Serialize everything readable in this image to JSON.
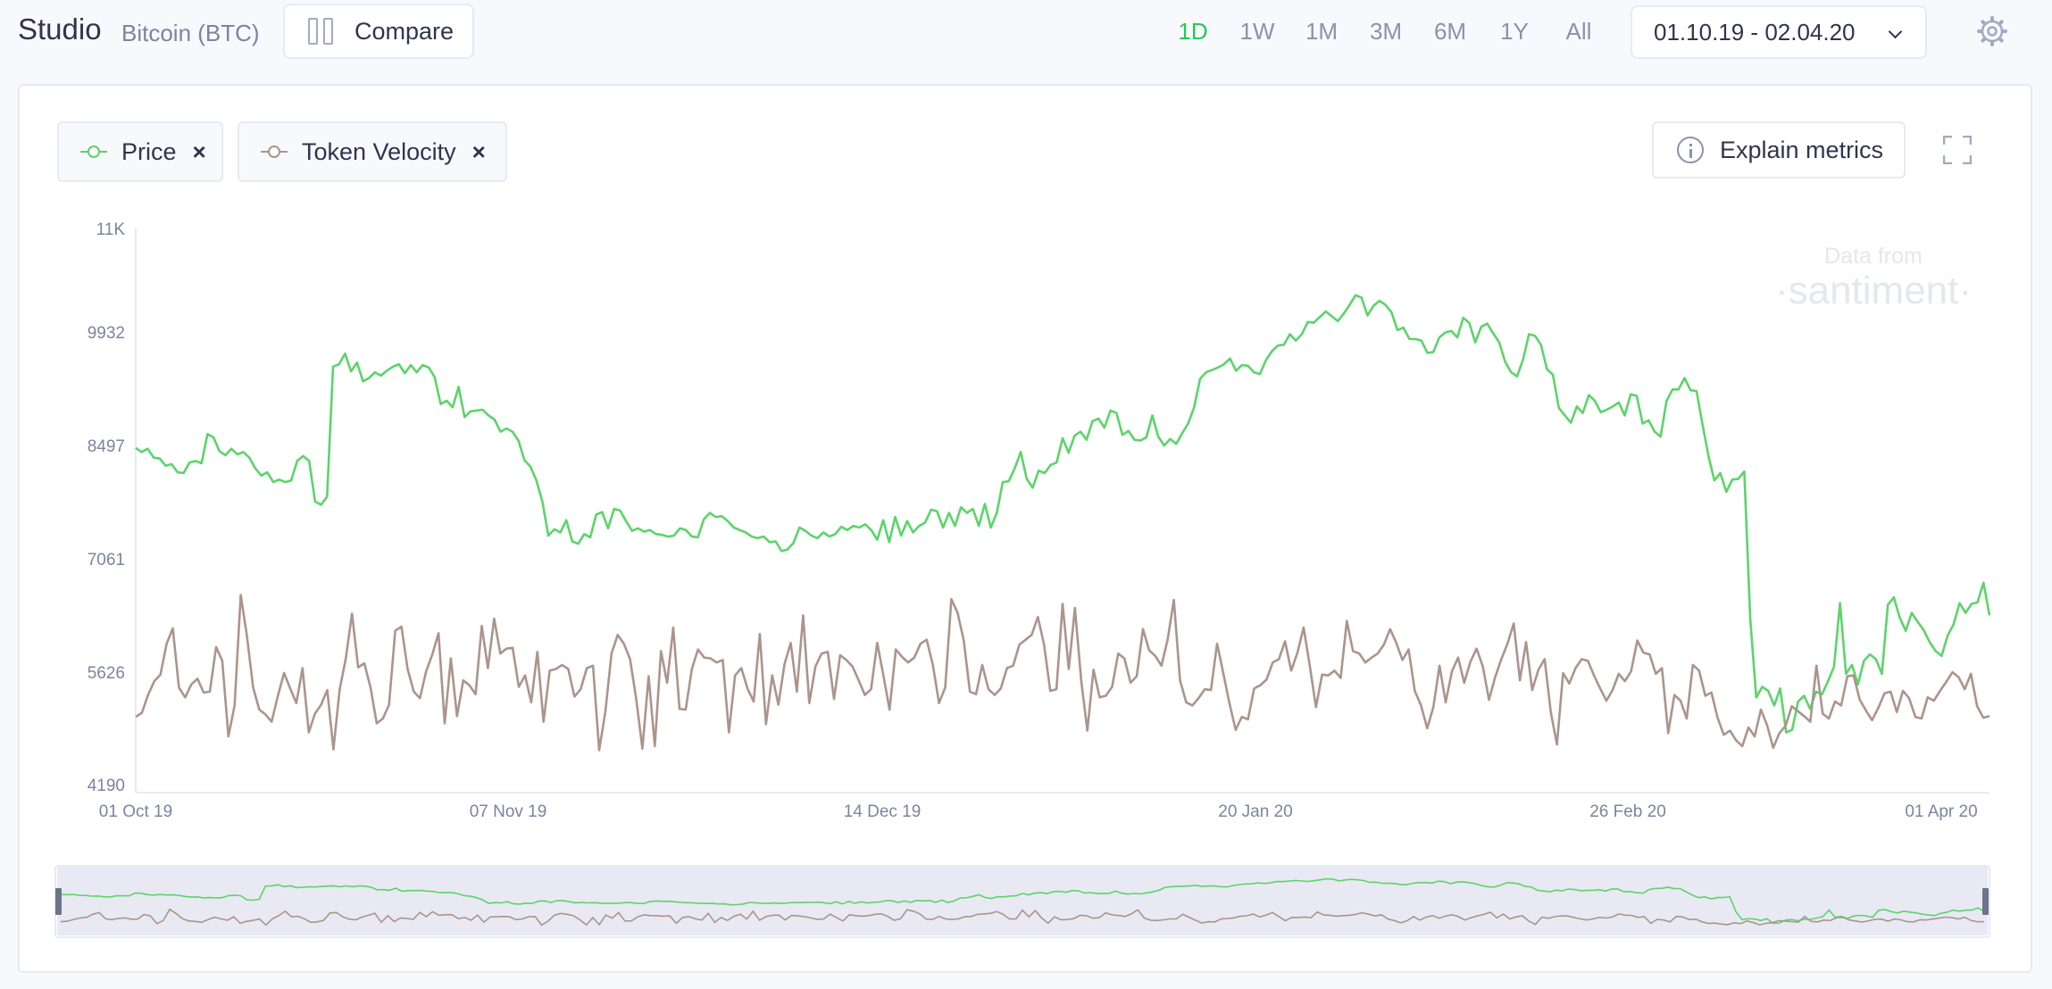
{
  "header": {
    "title": "Studio",
    "project": "Bitcoin (BTC)",
    "compare_label": "Compare",
    "ranges": [
      "1D",
      "1W",
      "1M",
      "3M",
      "6M",
      "1Y",
      "All"
    ],
    "active_range": "1D",
    "date_range": "01.10.19 - 02.04.20"
  },
  "metrics": [
    {
      "name": "Price",
      "color": "#5cd46a",
      "remove": "×"
    },
    {
      "name": "Token Velocity",
      "color": "#ac948c",
      "remove": "×"
    }
  ],
  "explain_label": "Explain metrics",
  "watermark": {
    "line1": "Data from",
    "line2": "·santiment·"
  },
  "chart_data": {
    "type": "line",
    "y_ticks": [
      "11K",
      "9932",
      "8497",
      "7061",
      "5626",
      "4190"
    ],
    "ylim": [
      4190,
      11000
    ],
    "x_ticks": [
      "01 Oct 19",
      "07 Nov 19",
      "14 Dec 19",
      "20 Jan 20",
      "26 Feb 20",
      "01 Apr 20"
    ],
    "x_range": [
      "2019-10-01",
      "2020-04-02"
    ],
    "series": [
      {
        "name": "Price",
        "color": "#5cd46a",
        "values": [
          8300,
          8250,
          8290,
          8180,
          8170,
          8080,
          8100,
          8000,
          7990,
          8120,
          8140,
          8110,
          8470,
          8430,
          8260,
          8210,
          8290,
          8220,
          8250,
          8180,
          8050,
          7960,
          8000,
          7880,
          7910,
          7880,
          7900,
          8140,
          8200,
          8140,
          7640,
          7600,
          7700,
          9300,
          9330,
          9460,
          9240,
          9350,
          9120,
          9160,
          9230,
          9190,
          9250,
          9300,
          9330,
          9220,
          9320,
          9230,
          9320,
          9290,
          9170,
          8840,
          8880,
          8800,
          9050,
          8680,
          8750,
          8760,
          8770,
          8700,
          8650,
          8500,
          8540,
          8500,
          8390,
          8150,
          8070,
          7900,
          7640,
          7220,
          7300,
          7260,
          7410,
          7150,
          7120,
          7240,
          7200,
          7480,
          7510,
          7310,
          7550,
          7530,
          7400,
          7280,
          7310,
          7270,
          7290,
          7240,
          7230,
          7210,
          7220,
          7310,
          7290,
          7210,
          7200,
          7420,
          7500,
          7450,
          7460,
          7400,
          7320,
          7290,
          7260,
          7210,
          7190,
          7210,
          7140,
          7150,
          7030,
          7050,
          7130,
          7320,
          7280,
          7220,
          7190,
          7260,
          7210,
          7240,
          7330,
          7290,
          7340,
          7320,
          7360,
          7290,
          7170,
          7410,
          7140,
          7450,
          7220,
          7400,
          7260,
          7340,
          7380,
          7540,
          7520,
          7320,
          7500,
          7340,
          7570,
          7500,
          7550,
          7340,
          7610,
          7320,
          7500,
          7880,
          7890,
          8050,
          8250,
          7920,
          7810,
          8020,
          7990,
          8090,
          8120,
          8420,
          8240,
          8450,
          8500,
          8400,
          8630,
          8660,
          8550,
          8760,
          8730,
          8460,
          8510,
          8400,
          8390,
          8430,
          8700,
          8440,
          8330,
          8410,
          8350,
          8480,
          8600,
          8800,
          9150,
          9230,
          9260,
          9290,
          9330,
          9400,
          9250,
          9320,
          9310,
          9230,
          9210,
          9380,
          9490,
          9560,
          9570,
          9700,
          9620,
          9700,
          9850,
          9840,
          9910,
          9980,
          9920,
          9860,
          9950,
          10060,
          10180,
          10150,
          9930,
          10050,
          10110,
          10060,
          9970,
          9750,
          9780,
          9640,
          9640,
          9620,
          9470,
          9480,
          9660,
          9720,
          9740,
          9660,
          9900,
          9840,
          9600,
          9790,
          9830,
          9710,
          9600,
          9360,
          9230,
          9180,
          9390,
          9700,
          9680,
          9570,
          9270,
          9200,
          8790,
          8700,
          8610,
          8810,
          8730,
          8950,
          8880,
          8740,
          8770,
          8810,
          8860,
          8700,
          8960,
          8940,
          8600,
          8640,
          8500,
          8440,
          8880,
          9020,
          9020,
          9160,
          9010,
          9000,
          8590,
          8200,
          7900,
          7990,
          7760,
          7910,
          7920,
          8010,
          6190,
          5230,
          5360,
          5310,
          5130,
          5340,
          4800,
          4830,
          5180,
          5250,
          5090,
          5300,
          5270,
          5430,
          5610,
          6390,
          5520,
          5630,
          5390,
          5680,
          5760,
          5700,
          5520,
          6370,
          6460,
          6210,
          6050,
          6270,
          6160,
          6060,
          5910,
          5800,
          5740,
          5990,
          6130,
          6390,
          6270,
          6380,
          6400,
          6640,
          6240
        ]
      },
      {
        "name": "Token Velocity",
        "color": "#ac948c",
        "values": [
          4990,
          5040,
          5260,
          5430,
          5510,
          5890,
          6080,
          5350,
          5230,
          5390,
          5460,
          5290,
          5300,
          5850,
          5680,
          4750,
          5130,
          6490,
          5980,
          5350,
          5080,
          5020,
          4930,
          5250,
          5530,
          5340,
          5160,
          5590,
          4800,
          5030,
          5140,
          5320,
          4590,
          5330,
          5710,
          6260,
          5600,
          5650,
          5350,
          4910,
          4970,
          5140,
          6050,
          6100,
          5580,
          5300,
          5220,
          5550,
          5760,
          6020,
          4910,
          5710,
          5000,
          5440,
          5380,
          5270,
          6110,
          5590,
          6200,
          5770,
          5830,
          5840,
          5360,
          5500,
          5170,
          5790,
          4930,
          5560,
          5580,
          5630,
          5580,
          5240,
          5330,
          5590,
          5620,
          4580,
          5050,
          5770,
          6000,
          5890,
          5700,
          5210,
          4600,
          5490,
          4630,
          5800,
          5410,
          6090,
          5090,
          5080,
          5580,
          5820,
          5720,
          5710,
          5660,
          5690,
          4800,
          5500,
          5590,
          5340,
          5180,
          6010,
          4900,
          5500,
          5140,
          5640,
          5900,
          5300,
          6240,
          5160,
          5610,
          5770,
          5790,
          5210,
          5750,
          5690,
          5610,
          5440,
          5260,
          5330,
          5900,
          5500,
          5080,
          5820,
          5730,
          5660,
          5720,
          5890,
          5940,
          5630,
          5160,
          5350,
          6440,
          6270,
          5930,
          5300,
          5270,
          5630,
          5330,
          5260,
          5340,
          5590,
          5620,
          5880,
          5940,
          6000,
          6220,
          5880,
          5310,
          5330,
          6380,
          5580,
          6330,
          5440,
          4820,
          5570,
          5230,
          5250,
          5360,
          5770,
          5710,
          5410,
          5490,
          6070,
          5810,
          5740,
          5620,
          5940,
          6430,
          5440,
          5170,
          5130,
          5220,
          5330,
          5320,
          5890,
          5530,
          5160,
          4830,
          4990,
          4960,
          5340,
          5380,
          5450,
          5660,
          5700,
          5920,
          5560,
          5780,
          6090,
          5620,
          5110,
          5510,
          5500,
          5560,
          5470,
          6170,
          5800,
          5770,
          5660,
          5720,
          5770,
          5880,
          6070,
          5900,
          5690,
          5820,
          5310,
          5130,
          4850,
          5110,
          5620,
          5170,
          5550,
          5720,
          5410,
          5670,
          5830,
          5610,
          5200,
          5480,
          5700,
          5890,
          6140,
          5440,
          5910,
          5320,
          5570,
          5700,
          5050,
          4650,
          5530,
          5400,
          5590,
          5700,
          5680,
          5500,
          5340,
          5190,
          5320,
          5520,
          5430,
          5550,
          5930,
          5780,
          5760,
          5520,
          5590,
          4790,
          5260,
          5190,
          4970,
          5630,
          5560,
          5250,
          5290,
          4980,
          4770,
          4820,
          4700,
          4630,
          4860,
          4750,
          5080,
          4890,
          4610,
          4790,
          4880,
          5120,
          5060,
          5000,
          4930,
          5620,
          5030,
          4970,
          5180,
          5130,
          5490,
          5500,
          5200,
          5070,
          4950,
          5100,
          5280,
          5300,
          5050,
          5310,
          5220,
          4990,
          4970,
          5230,
          5190,
          5310,
          5420,
          5540,
          5480,
          5330,
          5520,
          5120,
          4980,
          5000
        ]
      }
    ]
  }
}
